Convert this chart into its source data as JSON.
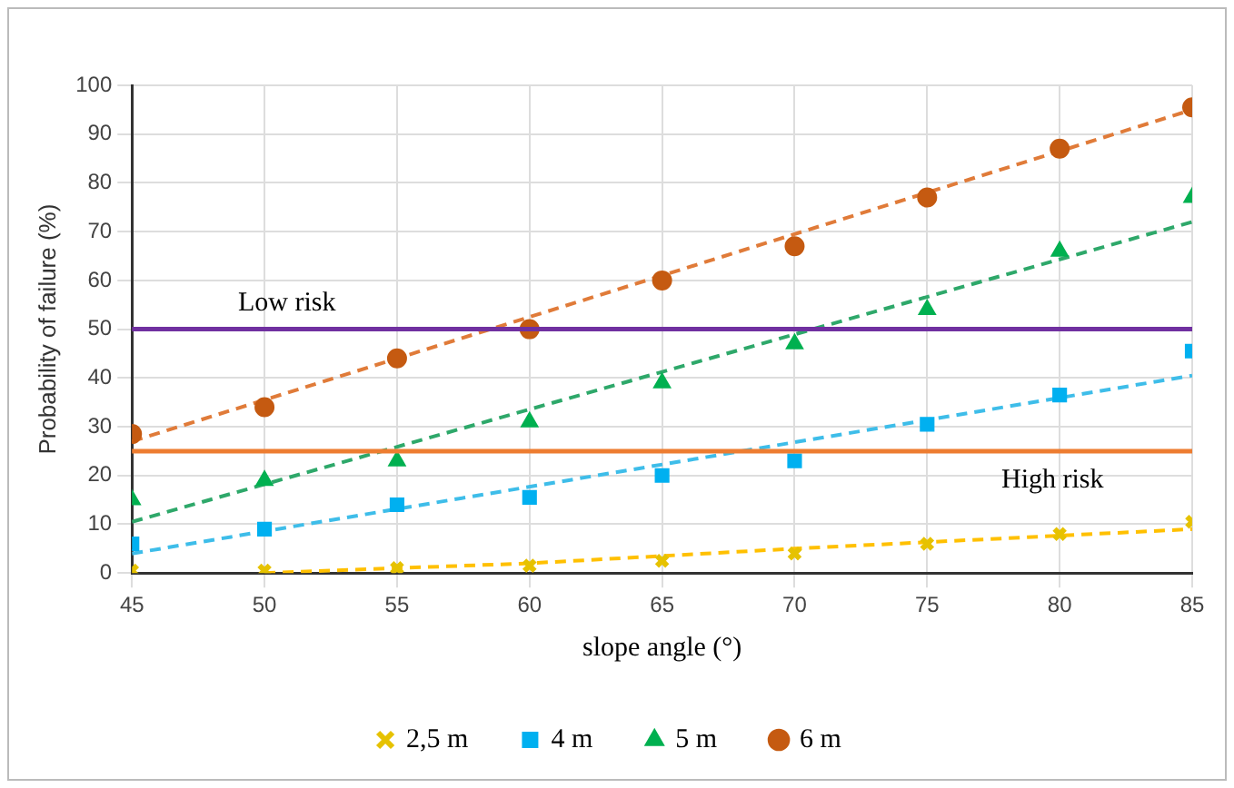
{
  "chart_data": {
    "type": "scatter",
    "xlabel": "slope angle (°)",
    "ylabel": "Probability of failure (%)",
    "x": [
      45,
      50,
      55,
      60,
      65,
      70,
      75,
      80,
      85
    ],
    "series": [
      {
        "name": "2,5 m",
        "color": "#e6c200",
        "marker": "cross",
        "values": [
          0.5,
          0.5,
          1,
          1.5,
          2.5,
          4,
          6,
          8,
          10.5
        ]
      },
      {
        "name": "4 m",
        "color": "#00b0f0",
        "marker": "square",
        "values": [
          6,
          9,
          14,
          15.5,
          20,
          23,
          30.5,
          36.5,
          45.5
        ]
      },
      {
        "name": "5 m",
        "color": "#00b050",
        "marker": "triangle",
        "values": [
          15,
          19,
          23,
          31,
          39,
          47,
          54,
          66,
          77
        ]
      },
      {
        "name": "6 m",
        "color": "#c55a11",
        "marker": "circle",
        "values": [
          28.5,
          34,
          44,
          50,
          60,
          67,
          77,
          87,
          95.5
        ]
      },
      {
        "type": "line",
        "color": "#ffc000",
        "marker": "none",
        "line_style": "dashed",
        "x": [
          50,
          60,
          70,
          85
        ],
        "values": [
          0,
          2,
          5,
          9
        ]
      },
      {
        "type": "line",
        "color": "#3ebde9",
        "marker": "none",
        "line_style": "dashed",
        "x": [
          45,
          85
        ],
        "values": [
          4,
          40.5
        ]
      },
      {
        "type": "line",
        "color": "#2ea86a",
        "marker": "none",
        "line_style": "dashed",
        "x": [
          45,
          85
        ],
        "values": [
          10.5,
          72
        ]
      },
      {
        "type": "line",
        "color": "#e07b39",
        "marker": "none",
        "line_style": "dashed",
        "x": [
          45,
          85
        ],
        "values": [
          27,
          95
        ]
      }
    ],
    "ref_lines": [
      {
        "axis": "y",
        "value": 50,
        "color": "#7030a0",
        "label": "Low risk"
      },
      {
        "axis": "y",
        "value": 25,
        "color": "#ed7d31",
        "label": "High risk"
      }
    ],
    "xlim": [
      45,
      85
    ],
    "xticks": [
      45,
      50,
      55,
      60,
      65,
      70,
      75,
      80,
      85
    ],
    "ylim": [
      0,
      100
    ],
    "yticks": [
      0,
      10,
      20,
      30,
      40,
      50,
      60,
      70,
      80,
      90,
      100
    ],
    "grid": true,
    "legend": "bottom"
  }
}
